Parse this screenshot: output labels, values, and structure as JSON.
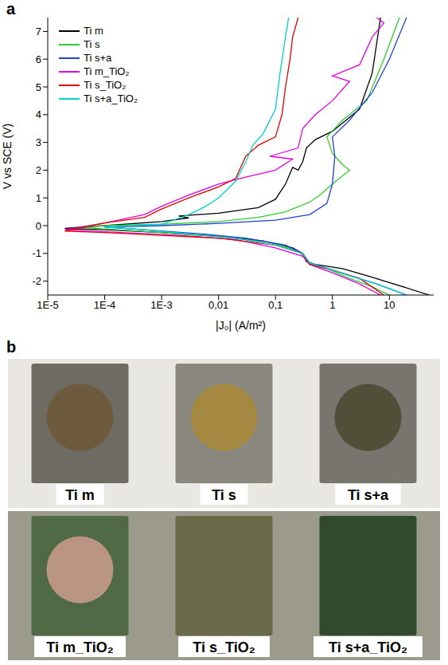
{
  "chart_data": {
    "type": "line",
    "panel_label": "a",
    "x_label": "|J₀| (A/m²)",
    "y_label": "V vs SCE (V)",
    "log": "x",
    "grid": false,
    "legend": "upper left",
    "xlim": [
      1e-05,
      60
    ],
    "xticks": [
      {
        "value": 1e-05,
        "label": "1E-5"
      },
      {
        "value": 0.0001,
        "label": "1E-4"
      },
      {
        "value": 0.001,
        "label": "1E-3"
      },
      {
        "value": 0.01,
        "label": "0,01"
      },
      {
        "value": 0.1,
        "label": "0,1"
      },
      1,
      10
    ],
    "ylim": [
      -2.5,
      7.5
    ],
    "yticks": [
      -2,
      -1,
      0,
      1,
      2,
      3,
      4,
      5,
      6,
      7
    ],
    "series": [
      {
        "name": "Ti m",
        "color": "#000000",
        "x": [
          50,
          12,
          4,
          1.5,
          0.5,
          0.35,
          0.3,
          0.2,
          0.06,
          0.01,
          0.001,
          0.0001,
          2e-05,
          0.0001,
          0.001,
          0.003,
          0.002,
          0.01,
          0.05,
          0.1,
          0.15,
          0.2,
          0.25,
          0.3,
          0.35,
          0.5,
          1,
          3,
          5,
          7
        ],
        "values": [
          -2.5,
          -2.1,
          -1.8,
          -1.55,
          -1.4,
          -1.3,
          -1.0,
          -0.8,
          -0.55,
          -0.38,
          -0.25,
          -0.15,
          -0.1,
          0.0,
          0.15,
          0.28,
          0.35,
          0.45,
          0.65,
          0.95,
          1.5,
          2.1,
          2.0,
          2.3,
          2.8,
          3.1,
          3.4,
          4.2,
          5.5,
          7.5
        ]
      },
      {
        "name": "Ti s",
        "color": "#2ecc2e",
        "x": [
          10,
          5,
          2,
          0.8,
          0.4,
          0.35,
          0.25,
          0.08,
          0.01,
          0.001,
          0.0001,
          3e-05,
          0.0001,
          0.001,
          0.01,
          0.05,
          0.15,
          0.4,
          0.6,
          1,
          2,
          1.5,
          1,
          0.8,
          1.5,
          4,
          8,
          15
        ],
        "values": [
          -2.5,
          -2.2,
          -1.9,
          -1.55,
          -1.4,
          -1.2,
          -0.9,
          -0.6,
          -0.4,
          -0.25,
          -0.12,
          -0.05,
          0.0,
          0.05,
          0.15,
          0.3,
          0.5,
          0.85,
          1.1,
          1.5,
          2.0,
          2.2,
          2.6,
          3.2,
          3.8,
          4.5,
          6.0,
          7.5
        ]
      },
      {
        "name": "Ti s+a",
        "color": "#1f3fd6",
        "x": [
          20,
          6,
          2,
          0.7,
          0.4,
          0.3,
          0.15,
          0.03,
          0.005,
          0.0005,
          0.0001,
          0.001,
          0.01,
          0.1,
          0.4,
          0.8,
          1,
          1.1,
          1,
          2,
          5,
          10,
          20
        ],
        "values": [
          -2.5,
          -2.1,
          -1.8,
          -1.5,
          -1.35,
          -1.0,
          -0.7,
          -0.45,
          -0.3,
          -0.15,
          -0.05,
          0.0,
          0.08,
          0.2,
          0.4,
          0.8,
          1.5,
          2.5,
          3.2,
          3.8,
          4.8,
          6.0,
          7.5
        ]
      },
      {
        "name": "Ti m_TiO₂",
        "color": "#e000e0",
        "x": [
          7,
          3,
          1,
          0.4,
          0.3,
          0.1,
          0.02,
          0.002,
          0.0002,
          2e-05,
          0.0001,
          0.0005,
          0.001,
          0.003,
          0.01,
          0.03,
          0.1,
          0.2,
          0.08,
          0.25,
          0.3,
          0.5,
          1,
          2,
          1,
          3,
          5,
          8,
          6
        ],
        "values": [
          -2.5,
          -2.1,
          -1.7,
          -1.4,
          -1.1,
          -0.8,
          -0.5,
          -0.35,
          -0.25,
          -0.15,
          0.1,
          0.4,
          0.7,
          1.1,
          1.5,
          1.75,
          2.0,
          2.4,
          2.5,
          2.8,
          3.5,
          4.0,
          4.5,
          5.2,
          5.4,
          5.8,
          6.8,
          7.3,
          7.5
        ]
      },
      {
        "name": "Ti s_TiO₂",
        "color": "#e00000",
        "x": [
          8,
          3,
          1,
          0.4,
          0.3,
          0.1,
          0.01,
          0.001,
          0.0001,
          2e-05,
          0.0001,
          0.0005,
          0.001,
          0.003,
          0.01,
          0.02,
          0.03,
          0.05,
          0.1,
          0.13,
          0.15,
          0.18,
          0.2,
          0.25
        ],
        "values": [
          -2.5,
          -1.9,
          -1.6,
          -1.4,
          -1.0,
          -0.7,
          -0.45,
          -0.35,
          -0.25,
          -0.2,
          0.1,
          0.3,
          0.6,
          1.0,
          1.4,
          1.7,
          2.5,
          2.9,
          3.2,
          4.0,
          5.0,
          6.0,
          6.8,
          7.5
        ]
      },
      {
        "name": "Ti s+a_TiO₂",
        "color": "#00d0d0",
        "x": [
          20,
          6,
          2,
          0.7,
          0.4,
          0.3,
          0.1,
          0.02,
          0.003,
          0.0005,
          0.0001,
          0.001,
          0.003,
          0.006,
          0.01,
          0.02,
          0.03,
          0.04,
          0.06,
          0.1,
          0.12,
          0.15,
          0.17
        ],
        "values": [
          -2.5,
          -2.1,
          -1.8,
          -1.5,
          -1.35,
          -1.0,
          -0.7,
          -0.45,
          -0.3,
          -0.15,
          -0.05,
          0.05,
          0.4,
          0.7,
          1.0,
          1.6,
          2.3,
          2.9,
          3.3,
          4.2,
          5.5,
          6.8,
          7.5
        ]
      }
    ]
  },
  "photos": {
    "panel_label": "b",
    "samples": [
      "Ti m",
      "Ti s",
      "Ti s+a",
      "Ti m_TiO₂",
      "Ti s_TiO₂",
      "Ti s+a_TiO₂"
    ]
  }
}
